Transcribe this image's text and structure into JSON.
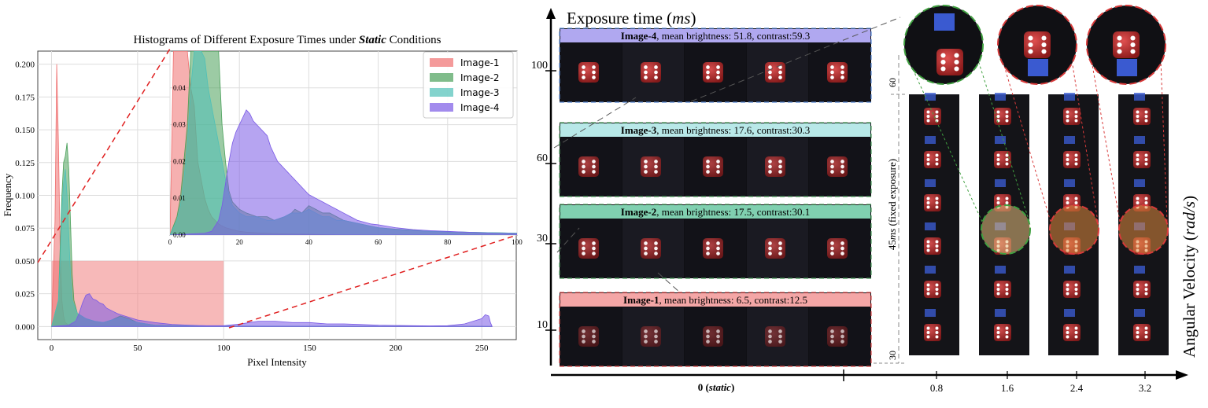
{
  "chart_data": [
    {
      "type": "area",
      "title_prefix": "Histograms of Different Exposure Times under ",
      "title_emph": "Static",
      "title_suffix": " Conditions",
      "xlabel": "Pixel Intensity",
      "ylabel": "Frequency",
      "xlim": [
        -8,
        270
      ],
      "ylim": [
        -0.01,
        0.21
      ],
      "xticks": [
        0,
        50,
        100,
        150,
        200,
        250
      ],
      "yticks": [
        0.0,
        0.025,
        0.05,
        0.075,
        0.1,
        0.125,
        0.15,
        0.175,
        0.2
      ],
      "ytick_labels": [
        "0.000",
        "0.025",
        "0.050",
        "0.075",
        "0.100",
        "0.125",
        "0.150",
        "0.175",
        "0.200"
      ],
      "grid": true,
      "legend": "top-right",
      "highlight_region": {
        "x": [
          0,
          100
        ],
        "y": [
          0,
          0.05
        ],
        "color": "#f28b8b"
      },
      "series": [
        {
          "name": "Image-1",
          "color": "#ef6f6f",
          "x": [
            0,
            2,
            3,
            4,
            5,
            6,
            7,
            8,
            10,
            12,
            15
          ],
          "y": [
            0,
            0.08,
            0.2,
            0.14,
            0.06,
            0.02,
            0.008,
            0.003,
            0.001,
            0.0005,
            0
          ]
        },
        {
          "name": "Image-2",
          "color": "#4aa05a",
          "x": [
            0,
            4,
            5,
            6,
            7,
            8,
            9,
            10,
            11,
            12,
            13,
            15,
            20,
            25,
            30,
            35,
            40,
            45,
            50,
            55,
            60,
            70,
            80,
            100,
            150,
            250,
            256
          ],
          "y": [
            0,
            0.02,
            0.06,
            0.1,
            0.125,
            0.13,
            0.14,
            0.12,
            0.08,
            0.04,
            0.02,
            0.01,
            0.006,
            0.004,
            0.003,
            0.005,
            0.008,
            0.006,
            0.003,
            0.002,
            0.001,
            0.0008,
            0.0005,
            0.0003,
            0.0002,
            0.0001,
            0
          ]
        },
        {
          "name": "Image-3",
          "color": "#4fc0b8",
          "x": [
            0,
            4,
            5,
            6,
            7,
            8,
            9,
            10,
            11,
            12,
            15,
            20,
            25,
            30,
            35,
            40,
            45,
            50,
            60,
            80,
            100,
            256
          ],
          "y": [
            0,
            0.02,
            0.05,
            0.09,
            0.11,
            0.12,
            0.1,
            0.07,
            0.04,
            0.02,
            0.01,
            0.006,
            0.004,
            0.003,
            0.005,
            0.007,
            0.005,
            0.003,
            0.001,
            0.0005,
            0.0003,
            0
          ]
        },
        {
          "name": "Image-4",
          "color": "#7a5ae6",
          "x": [
            0,
            10,
            14,
            16,
            18,
            20,
            22,
            24,
            26,
            28,
            30,
            32,
            35,
            38,
            40,
            45,
            50,
            55,
            60,
            70,
            80,
            90,
            100,
            110,
            115,
            120,
            130,
            140,
            150,
            160,
            170,
            180,
            190,
            200,
            210,
            220,
            230,
            240,
            245,
            250,
            252,
            254,
            255,
            256
          ],
          "y": [
            0,
            0.001,
            0.004,
            0.01,
            0.018,
            0.024,
            0.025,
            0.021,
            0.02,
            0.018,
            0.017,
            0.014,
            0.012,
            0.01,
            0.009,
            0.007,
            0.005,
            0.004,
            0.003,
            0.0016,
            0.001,
            0.0006,
            0.0006,
            0.002,
            0.003,
            0.004,
            0.004,
            0.003,
            0.003,
            0.002,
            0.002,
            0.0015,
            0.001,
            0.0008,
            0.0006,
            0.0005,
            0.0006,
            0.002,
            0.004,
            0.006,
            0.009,
            0.008,
            0.003,
            0
          ]
        }
      ],
      "inset": {
        "xlim": [
          0,
          100
        ],
        "ylim": [
          0,
          0.05
        ],
        "xticks": [
          0,
          20,
          40,
          60,
          80,
          100
        ],
        "yticks": [
          0.0,
          0.01,
          0.02,
          0.03,
          0.04
        ],
        "ytick_labels": [
          "0.00",
          "0.01",
          "0.02",
          "0.03",
          "0.04"
        ],
        "series": [
          {
            "name": "Image-1",
            "color": "#ef6f6f",
            "x": [
              0,
              1,
              2,
              3,
              4,
              5,
              6,
              7,
              8,
              9,
              10,
              11,
              12,
              13,
              14,
              15,
              16,
              18,
              20,
              22,
              25,
              30,
              40,
              50
            ],
            "y": [
              0,
              0.05,
              0.05,
              0.05,
              0.05,
              0.05,
              0.04,
              0.035,
              0.02,
              0.015,
              0.01,
              0.007,
              0.005,
              0.004,
              0.003,
              0.0025,
              0.002,
              0.0015,
              0.001,
              0.0008,
              0.0006,
              0.0004,
              0.0002,
              0
            ]
          },
          {
            "name": "Image-2",
            "color": "#4aa05a",
            "x": [
              0,
              2,
              3,
              4,
              5,
              6,
              7,
              8,
              9,
              10,
              11,
              12,
              13,
              14,
              15,
              16,
              17,
              18,
              20,
              22,
              25,
              28,
              30,
              33,
              35,
              36,
              38,
              40,
              42,
              44,
              46,
              48,
              50,
              55,
              60,
              65,
              70,
              75,
              80,
              85,
              90,
              95,
              100
            ],
            "y": [
              0,
              0.005,
              0.01,
              0.02,
              0.03,
              0.05,
              0.05,
              0.05,
              0.05,
              0.05,
              0.05,
              0.05,
              0.05,
              0.05,
              0.03,
              0.02,
              0.012,
              0.009,
              0.007,
              0.006,
              0.005,
              0.005,
              0.004,
              0.005,
              0.006,
              0.007,
              0.006,
              0.008,
              0.007,
              0.006,
              0.006,
              0.005,
              0.004,
              0.003,
              0.002,
              0.0016,
              0.0013,
              0.001,
              0.0009,
              0.0008,
              0.0007,
              0.0006,
              0.0005
            ]
          },
          {
            "name": "Image-3",
            "color": "#4fc0b8",
            "x": [
              0,
              2,
              3,
              4,
              5,
              6,
              7,
              8,
              9,
              10,
              11,
              12,
              13,
              14,
              15,
              16,
              17,
              18,
              20,
              22,
              25,
              28,
              30,
              33,
              35,
              36,
              38,
              40,
              42,
              44,
              46,
              48,
              50,
              55,
              60,
              65,
              70,
              75,
              80,
              85,
              90,
              95,
              100
            ],
            "y": [
              0,
              0.004,
              0.008,
              0.015,
              0.025,
              0.04,
              0.05,
              0.05,
              0.05,
              0.048,
              0.04,
              0.035,
              0.03,
              0.025,
              0.02,
              0.015,
              0.011,
              0.008,
              0.006,
              0.005,
              0.005,
              0.004,
              0.004,
              0.005,
              0.006,
              0.006,
              0.006,
              0.007,
              0.006,
              0.005,
              0.005,
              0.004,
              0.004,
              0.003,
              0.002,
              0.0015,
              0.0012,
              0.001,
              0.0009,
              0.0008,
              0.0007,
              0.0006,
              0.0005
            ]
          },
          {
            "name": "Image-4",
            "color": "#7a5ae6",
            "x": [
              0,
              10,
              12,
              14,
              15,
              16,
              17,
              18,
              19,
              20,
              21,
              22,
              23,
              24,
              25,
              26,
              27,
              28,
              29,
              30,
              31,
              32,
              33,
              34,
              35,
              36,
              37,
              38,
              39,
              40,
              42,
              44,
              46,
              48,
              50,
              52,
              54,
              56,
              58,
              60,
              65,
              70,
              75,
              80,
              85,
              90,
              95,
              100
            ],
            "y": [
              0,
              0.0005,
              0.001,
              0.004,
              0.008,
              0.014,
              0.02,
              0.025,
              0.028,
              0.03,
              0.032,
              0.034,
              0.033,
              0.031,
              0.03,
              0.029,
              0.028,
              0.027,
              0.024,
              0.022,
              0.02,
              0.019,
              0.018,
              0.017,
              0.016,
              0.015,
              0.014,
              0.013,
              0.012,
              0.011,
              0.01,
              0.009,
              0.008,
              0.007,
              0.006,
              0.005,
              0.004,
              0.0035,
              0.003,
              0.0028,
              0.002,
              0.0015,
              0.0012,
              0.001,
              0.0008,
              0.0006,
              0.0005,
              0.0004
            ]
          }
        ]
      }
    },
    {
      "type": "table",
      "y_axis_label_prefix": "Exposure time (",
      "y_axis_label_unit": "ms",
      "y_axis_label_suffix": ")",
      "y_ticks": [
        100,
        60,
        30,
        10
      ],
      "x_axis_label_prefix": "Angular Velocity (",
      "x_axis_label_unit": "rad/s",
      "x_axis_label_suffix": ")",
      "x_static_label": "0",
      "x_static_note": "static",
      "x_ticks": [
        "0.8",
        "1.6",
        "2.4",
        "3.2"
      ],
      "fixed_exposure_value": "45",
      "fixed_exposure_unit": "ms",
      "fixed_exposure_note": " (fixed exposure)",
      "fixed_range_top": "60",
      "fixed_range_bottom": "30",
      "rows": [
        {
          "name": "Image-4",
          "rest": ", mean brightness: 51.8, contrast:59.3",
          "color": "#b0a8f0",
          "border": "#5a8ad6",
          "exposure": 100
        },
        {
          "name": "Image-3",
          "rest": ", mean brightness: 17.6, contrast:30.3",
          "color": "#b8e8e8",
          "border": "#4a9a5a",
          "exposure": 60
        },
        {
          "name": "Image-2",
          "rest": ", mean brightness: 17.5, contrast:30.1",
          "color": "#80d0b0",
          "border": "#4a9a5a",
          "exposure": 30
        },
        {
          "name": "Image-1",
          "rest": ", mean brightness: 6.5, contrast:12.5",
          "color": "#f4a6a6",
          "border": "#d84848",
          "exposure": 10
        }
      ],
      "dice_counts_per_row": [
        5,
        5,
        5,
        5
      ],
      "velocity_columns": [
        {
          "value": "0.8",
          "frames": 6
        },
        {
          "value": "1.6",
          "frames": 6
        },
        {
          "value": "2.4",
          "frames": 6
        },
        {
          "value": "3.2",
          "frames": 6
        }
      ],
      "zoom_circles": [
        {
          "border": "#40a040"
        },
        {
          "border": "#d83a3a"
        },
        {
          "border": "#d83a3a"
        }
      ]
    }
  ]
}
